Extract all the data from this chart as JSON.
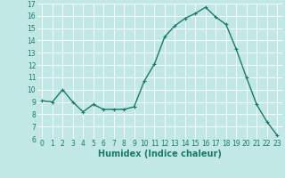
{
  "x": [
    0,
    1,
    2,
    3,
    4,
    5,
    6,
    7,
    8,
    9,
    10,
    11,
    12,
    13,
    14,
    15,
    16,
    17,
    18,
    19,
    20,
    21,
    22,
    23
  ],
  "y": [
    9.1,
    9.0,
    10.0,
    9.0,
    8.2,
    8.8,
    8.4,
    8.4,
    8.4,
    8.6,
    10.7,
    12.1,
    14.3,
    15.2,
    15.8,
    16.2,
    16.7,
    15.9,
    15.3,
    13.3,
    11.0,
    8.8,
    7.4,
    6.3
  ],
  "line_color": "#1a7a6a",
  "marker": "+",
  "marker_size": 3,
  "bg_color": "#c2e8e5",
  "grid_color": "#ffffff",
  "xlabel": "Humidex (Indice chaleur)",
  "ylim": [
    6,
    17
  ],
  "xlim": [
    -0.5,
    23.5
  ],
  "yticks": [
    6,
    7,
    8,
    9,
    10,
    11,
    12,
    13,
    14,
    15,
    16,
    17
  ],
  "xticks": [
    0,
    1,
    2,
    3,
    4,
    5,
    6,
    7,
    8,
    9,
    10,
    11,
    12,
    13,
    14,
    15,
    16,
    17,
    18,
    19,
    20,
    21,
    22,
    23
  ],
  "tick_fontsize": 5.5,
  "xlabel_fontsize": 7,
  "xlabel_fontweight": "bold",
  "linewidth": 1.0,
  "markeredgewidth": 0.8
}
